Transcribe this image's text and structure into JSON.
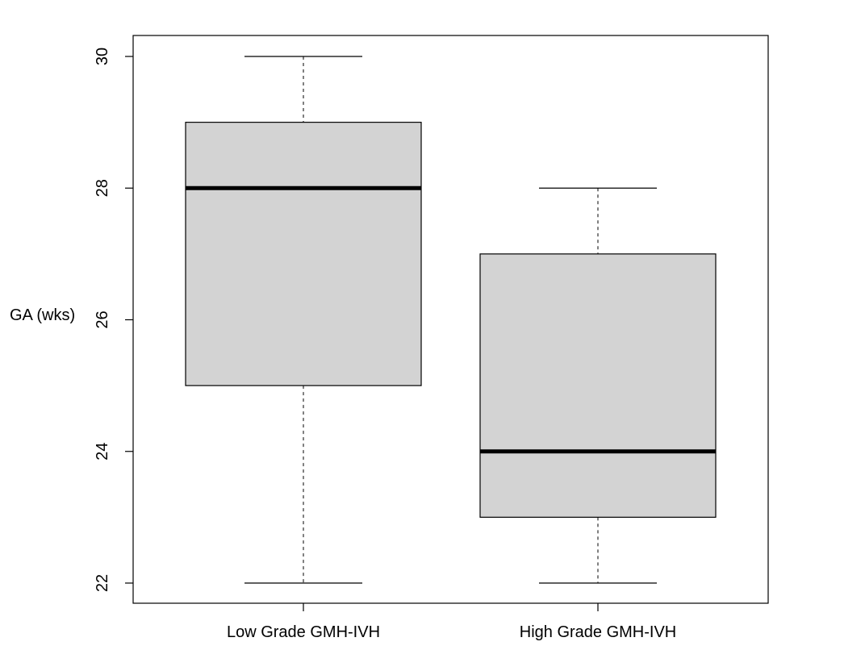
{
  "chart_data": {
    "type": "boxplot",
    "title": "",
    "xlabel": "",
    "ylabel": "GA (wks)",
    "ylim": [
      21.7,
      30.3
    ],
    "yticks": [
      22,
      24,
      26,
      28,
      30
    ],
    "grid": false,
    "legend": "none",
    "box_fill": "#d3d3d3",
    "line_color": "#000000",
    "categories": [
      "Low Grade GMH-IVH",
      "High Grade GMH-IVH"
    ],
    "boxes": [
      {
        "category": "Low Grade GMH-IVH",
        "min": 22,
        "q1": 25,
        "median": 28,
        "q3": 29,
        "max": 30
      },
      {
        "category": "High Grade GMH-IVH",
        "min": 22,
        "q1": 23,
        "median": 24,
        "q3": 27,
        "max": 28
      }
    ]
  }
}
